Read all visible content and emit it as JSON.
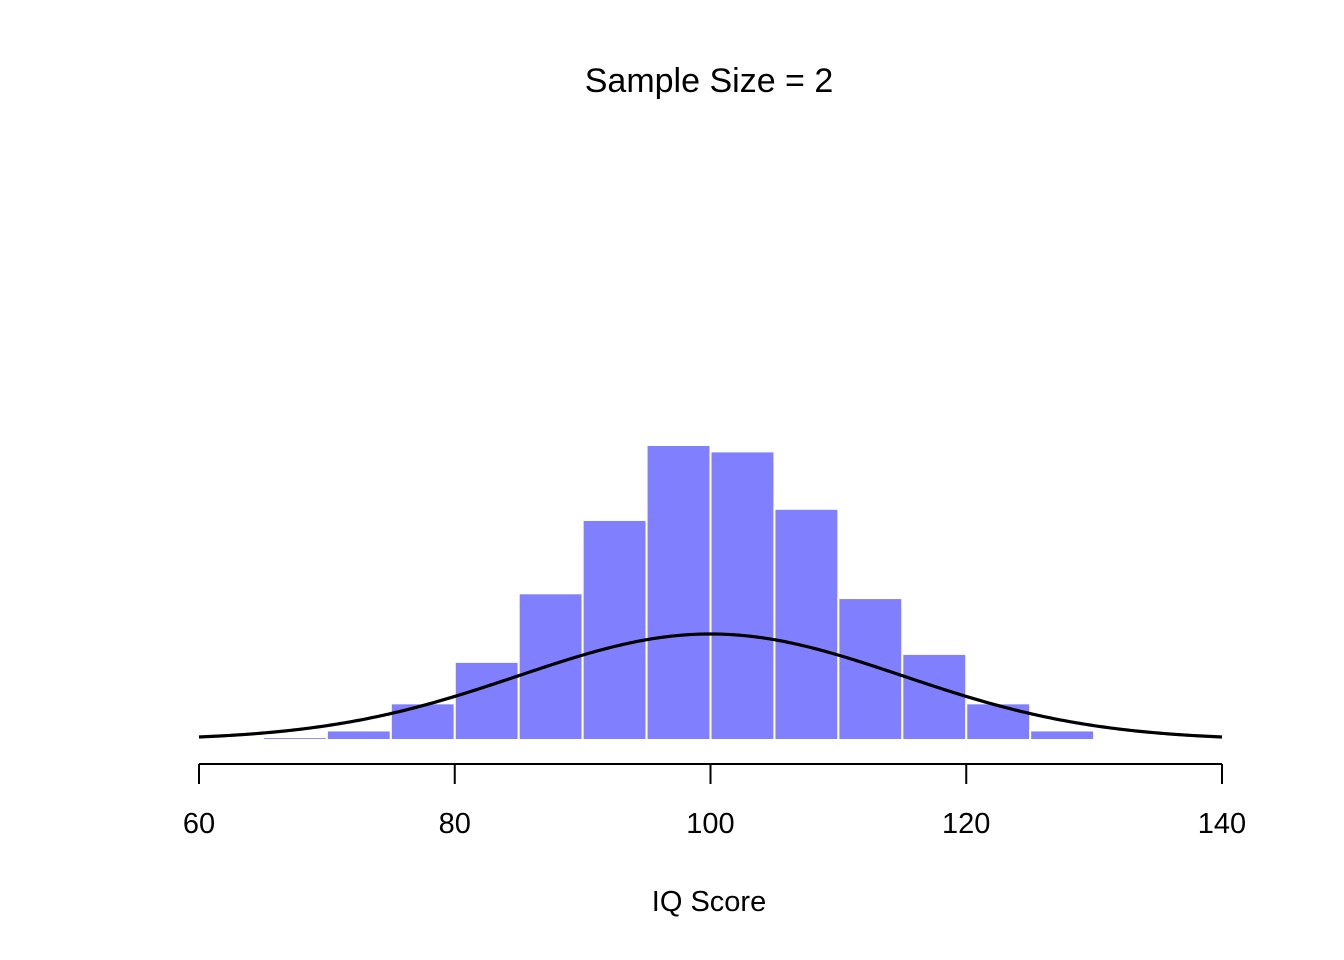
{
  "chart_data": {
    "type": "bar",
    "subtype": "histogram with normal density curve",
    "title": "Sample Size = 2",
    "xlabel": "IQ Score",
    "ylabel": "",
    "xlim": [
      60,
      140
    ],
    "x_ticks": [
      60,
      80,
      100,
      120,
      140
    ],
    "y_axis_shown": false,
    "bin_width": 5,
    "bins": [
      {
        "start": 65,
        "end": 70,
        "value": 0.00072
      },
      {
        "start": 70,
        "end": 75,
        "value": 0.0024
      },
      {
        "start": 75,
        "end": 80,
        "value": 0.0092
      },
      {
        "start": 80,
        "end": 85,
        "value": 0.0196
      },
      {
        "start": 85,
        "end": 90,
        "value": 0.0368
      },
      {
        "start": 90,
        "end": 95,
        "value": 0.0552
      },
      {
        "start": 95,
        "end": 100,
        "value": 0.074
      },
      {
        "start": 100,
        "end": 105,
        "value": 0.0724
      },
      {
        "start": 105,
        "end": 110,
        "value": 0.058
      },
      {
        "start": 110,
        "end": 115,
        "value": 0.0356
      },
      {
        "start": 115,
        "end": 120,
        "value": 0.0216
      },
      {
        "start": 120,
        "end": 125,
        "value": 0.0092
      },
      {
        "start": 125,
        "end": 130,
        "value": 0.0024
      }
    ],
    "curve": {
      "type": "normal",
      "mean": 100,
      "sd": 15
    },
    "colors": {
      "bar_fill": "#8080ff",
      "bar_edge": "#ffffff",
      "curve": "#000000"
    },
    "grid": false,
    "legend": "none"
  }
}
